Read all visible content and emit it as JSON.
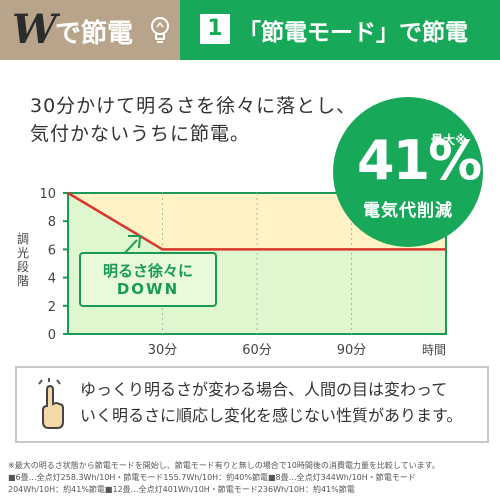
{
  "header": {
    "brand_w": "W",
    "brand_text": "で節電",
    "step_number": "1",
    "title": "「節電モード」で節電"
  },
  "intro": {
    "line1": "30分かけて明るさを徐々に落とし、",
    "line2": "気付かないうちに節電。"
  },
  "badge": {
    "prefix": "最大※",
    "value": "41%",
    "caption": "電気代削減"
  },
  "annotation": {
    "line1": "明るさ徐々に",
    "line2": "DOWN"
  },
  "chart_data": {
    "type": "line",
    "ylabel": "調光段階",
    "xlabel": "時間",
    "ylim": [
      0,
      10
    ],
    "xlim": [
      0,
      120
    ],
    "yticks": [
      "0",
      "2",
      "4",
      "6",
      "8",
      "10"
    ],
    "xticks": [
      {
        "x": 30,
        "label": "30分"
      },
      {
        "x": 60,
        "label": "60分"
      },
      {
        "x": 90,
        "label": "90分"
      }
    ],
    "x_end_label": "時間",
    "series": [
      {
        "x": [
          0,
          30,
          120
        ],
        "y": [
          10,
          6,
          6
        ]
      }
    ],
    "colors": {
      "line": "#d9342b",
      "area_upper": "#fff2c4",
      "area_lower": "#dff7cf",
      "axis": "#1a9a55"
    }
  },
  "note": {
    "line1": "ゆっくり明るさが変わる場合、人間の目は変わって",
    "line2": "いく明るさに順応し変化を感じない性質があります。"
  },
  "footnote": {
    "line1": "※最大の明るさ状態から節電モードを開始し、節電モード有りと無しの場合で10時間後の消費電力量を比較しています。",
    "line2": "■6畳…全点灯258.3Wh/10H・節電モード155.7Wh/10H：約40%節電■8畳…全点灯344Wh/10H・節電モード",
    "line3": "204Wh/10H：約41%節電■12畳…全点灯401Wh/10H・節電モード236Wh/10H：約41%節電"
  }
}
